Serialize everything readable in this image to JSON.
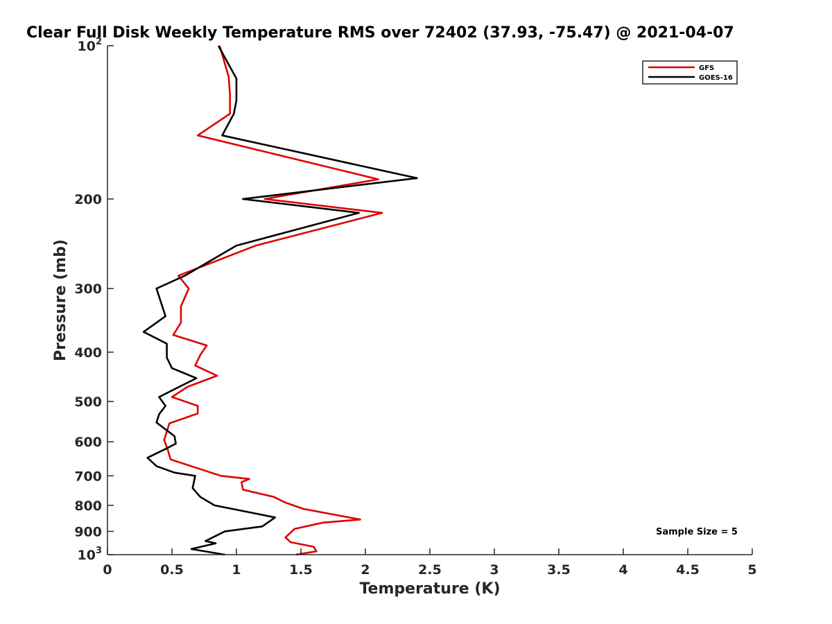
{
  "chart_data": {
    "type": "line",
    "title": "Clear Full Disk Weekly Temperature RMS over 72402 (37.93, -75.47) @ 2021-04-07",
    "xlabel": "Temperature (K)",
    "ylabel": "Pressure (mb)",
    "xlim": [
      0,
      5
    ],
    "ylim": [
      100,
      1000
    ],
    "y_scale": "log",
    "y_reversed": true,
    "grid": false,
    "legend_position": "top-right",
    "x_ticks": [
      "0",
      "0.5",
      "1",
      "1.5",
      "2",
      "2.5",
      "3",
      "3.5",
      "4",
      "4.5",
      "5"
    ],
    "x_tick_values": [
      0,
      0.5,
      1,
      1.5,
      2,
      2.5,
      3,
      3.5,
      4,
      4.5,
      5
    ],
    "y_tick_values": [
      100,
      200,
      300,
      400,
      500,
      600,
      700,
      800,
      900,
      1000
    ],
    "y_tick_labels": [
      {
        "base": "10",
        "exp": "2"
      },
      {
        "base": "200",
        "exp": ""
      },
      {
        "base": "300",
        "exp": ""
      },
      {
        "base": "400",
        "exp": ""
      },
      {
        "base": "500",
        "exp": ""
      },
      {
        "base": "600",
        "exp": ""
      },
      {
        "base": "700",
        "exp": ""
      },
      {
        "base": "800",
        "exp": ""
      },
      {
        "base": "900",
        "exp": ""
      },
      {
        "base": "10",
        "exp": "3"
      }
    ],
    "series": [
      {
        "name": "GFS",
        "color": "#e00000",
        "points": [
          [
            0.87,
            100
          ],
          [
            0.94,
            115
          ],
          [
            0.95,
            125
          ],
          [
            0.95,
            136
          ],
          [
            0.7,
            150
          ],
          [
            2.1,
            183
          ],
          [
            1.22,
            200
          ],
          [
            2.13,
            213
          ],
          [
            1.15,
            247
          ],
          [
            0.55,
            283
          ],
          [
            0.63,
            300
          ],
          [
            0.57,
            325
          ],
          [
            0.57,
            350
          ],
          [
            0.51,
            370
          ],
          [
            0.77,
            388
          ],
          [
            0.72,
            405
          ],
          [
            0.68,
            425
          ],
          [
            0.85,
            445
          ],
          [
            0.62,
            468
          ],
          [
            0.5,
            490
          ],
          [
            0.7,
            510
          ],
          [
            0.7,
            528
          ],
          [
            0.48,
            552
          ],
          [
            0.44,
            595
          ],
          [
            0.47,
            625
          ],
          [
            0.49,
            650
          ],
          [
            0.88,
            700
          ],
          [
            1.1,
            710
          ],
          [
            1.04,
            720
          ],
          [
            1.05,
            745
          ],
          [
            1.29,
            770
          ],
          [
            1.38,
            790
          ],
          [
            1.52,
            813
          ],
          [
            1.96,
            853
          ],
          [
            1.67,
            865
          ],
          [
            1.45,
            890
          ],
          [
            1.38,
            925
          ],
          [
            1.42,
            945
          ],
          [
            1.6,
            965
          ],
          [
            1.62,
            985
          ],
          [
            1.46,
            1000
          ]
        ]
      },
      {
        "name": "GOES-16",
        "color": "#000000",
        "points": [
          [
            0.86,
            100
          ],
          [
            1.0,
            116
          ],
          [
            1.0,
            128
          ],
          [
            0.98,
            136
          ],
          [
            0.89,
            150
          ],
          [
            2.4,
            182
          ],
          [
            1.05,
            200
          ],
          [
            1.95,
            213
          ],
          [
            1.0,
            247
          ],
          [
            0.6,
            283
          ],
          [
            0.38,
            300
          ],
          [
            0.45,
            340
          ],
          [
            0.28,
            365
          ],
          [
            0.46,
            385
          ],
          [
            0.46,
            410
          ],
          [
            0.5,
            430
          ],
          [
            0.69,
            450
          ],
          [
            0.4,
            490
          ],
          [
            0.45,
            510
          ],
          [
            0.4,
            530
          ],
          [
            0.38,
            550
          ],
          [
            0.52,
            585
          ],
          [
            0.53,
            605
          ],
          [
            0.45,
            620
          ],
          [
            0.31,
            645
          ],
          [
            0.38,
            670
          ],
          [
            0.52,
            690
          ],
          [
            0.68,
            700
          ],
          [
            0.66,
            740
          ],
          [
            0.72,
            770
          ],
          [
            0.83,
            800
          ],
          [
            1.3,
            845
          ],
          [
            1.2,
            880
          ],
          [
            0.91,
            900
          ],
          [
            0.76,
            940
          ],
          [
            0.84,
            950
          ],
          [
            0.65,
            975
          ],
          [
            0.91,
            1000
          ]
        ]
      }
    ],
    "annotation": "Sample Size = 5"
  }
}
